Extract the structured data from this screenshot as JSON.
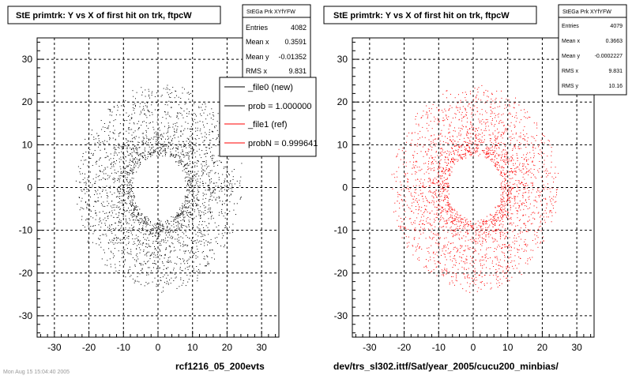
{
  "left_pad": {
    "title": "StE primtrk: Y vs X of first hit on trk, ftpcW",
    "footer": "rcf1216_05_200evts",
    "stats": {
      "name": "StEGa Prk XYfYFW",
      "rows": [
        {
          "label": "Entries",
          "value": "4082"
        },
        {
          "label": "Mean x",
          "value": "0.3591"
        },
        {
          "label": "Mean y",
          "value": "-0.01352"
        },
        {
          "label": "RMS x",
          "value": "9.831"
        }
      ]
    },
    "legend": [
      {
        "label": "_file0 (new)",
        "color": "#000000"
      },
      {
        "label": "prob = 1.000000",
        "color": "#000000"
      },
      {
        "label": "_file1 (ref)",
        "color": "#ff0000"
      },
      {
        "label": "probN = 0.999641",
        "color": "#ff0000"
      }
    ]
  },
  "right_pad": {
    "title": "StE primtrk: Y vs X of first hit on trk, ftpcW",
    "footer": "dev/trs_sl302.ittf/Sat/year_2005/cucu200_minbias/",
    "stats": {
      "name": "StEGa Prk XYfYFW",
      "rows": [
        {
          "label": "Entries",
          "value": "4079"
        },
        {
          "label": "Mean x",
          "value": "0.3663"
        },
        {
          "label": "Mean y",
          "value": "-0.0002227"
        },
        {
          "label": "RMS x",
          "value": "9.831"
        },
        {
          "label": "RMS y",
          "value": "10.16"
        }
      ]
    }
  },
  "bottom_left_text": "Mon Aug 15 15:04:40 2005",
  "chart_data": [
    {
      "type": "scatter",
      "title": "StE primtrk: Y vs X of first hit on trk, ftpcW",
      "xlim": [
        -35,
        35
      ],
      "ylim": [
        -35,
        35
      ],
      "xticks": [
        -30,
        -20,
        -10,
        0,
        10,
        20,
        30
      ],
      "yticks": [
        -30,
        -20,
        -10,
        0,
        10,
        20,
        30
      ],
      "grid": true,
      "marker_color": "#000000",
      "distribution": {
        "kind": "annulus",
        "inner_radius": 8,
        "outer_radius": 24,
        "center": [
          0.36,
          -0.01
        ],
        "entries": 4082
      }
    },
    {
      "type": "scatter",
      "title": "StE primtrk: Y vs X of first hit on trk, ftpcW",
      "xlim": [
        -35,
        35
      ],
      "ylim": [
        -35,
        35
      ],
      "xticks": [
        -30,
        -20,
        -10,
        0,
        10,
        20,
        30
      ],
      "yticks": [
        -30,
        -20,
        -10,
        0,
        10,
        20,
        30
      ],
      "grid": true,
      "marker_color": "#ff0000",
      "distribution": {
        "kind": "annulus",
        "inner_radius": 8,
        "outer_radius": 24,
        "center": [
          0.37,
          0.0
        ],
        "entries": 4079
      }
    }
  ]
}
